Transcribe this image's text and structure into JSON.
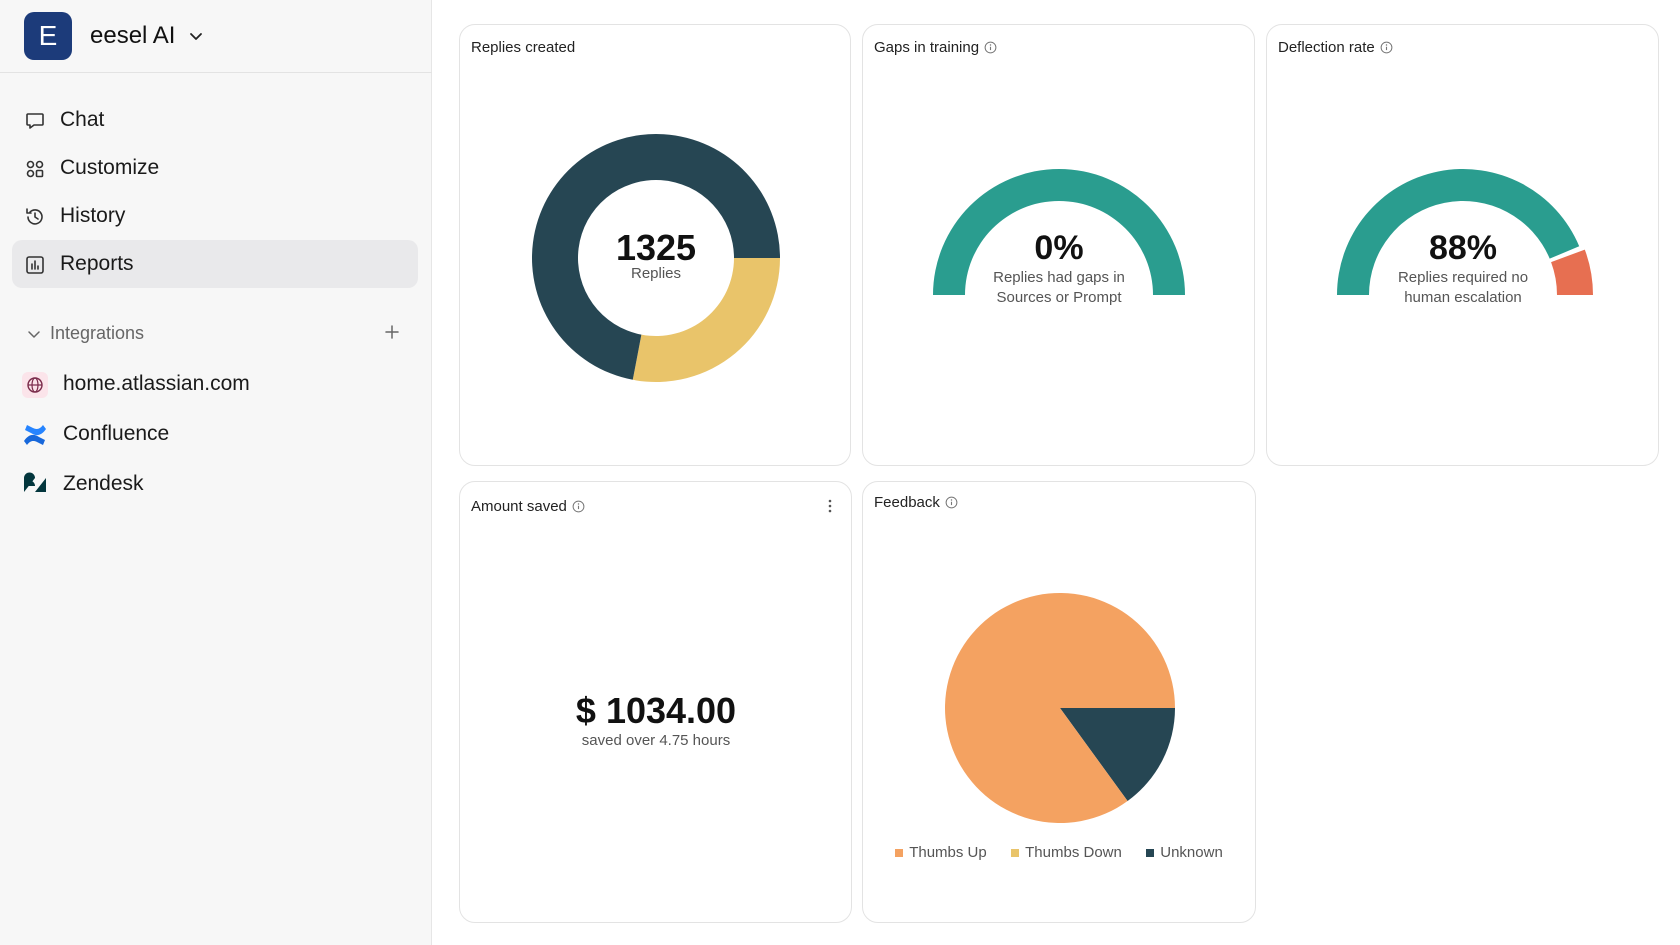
{
  "brand": {
    "logo_letter": "E",
    "name": "eesel AI"
  },
  "nav": [
    {
      "label": "Chat",
      "icon": "chat-icon",
      "active": false
    },
    {
      "label": "Customize",
      "icon": "customize-icon",
      "active": false
    },
    {
      "label": "History",
      "icon": "history-icon",
      "active": false
    },
    {
      "label": "Reports",
      "icon": "reports-icon",
      "active": true
    }
  ],
  "integrations": {
    "heading": "Integrations",
    "items": [
      {
        "label": "home.atlassian.com",
        "icon": "globe-icon"
      },
      {
        "label": "Confluence",
        "icon": "confluence-icon"
      },
      {
        "label": "Zendesk",
        "icon": "zendesk-icon"
      }
    ]
  },
  "cards": {
    "replies": {
      "title": "Replies created",
      "value": "1325",
      "caption": "Replies"
    },
    "gaps": {
      "title": "Gaps in training",
      "value": "0%",
      "caption_line1": "Replies had gaps in",
      "caption_line2": "Sources or Prompt"
    },
    "deflection": {
      "title": "Deflection rate",
      "value": "88%",
      "caption_line1": "Replies required no",
      "caption_line2": "human escalation"
    },
    "amount": {
      "title": "Amount saved",
      "value": "$ 1034.00",
      "caption": "saved over 4.75 hours"
    },
    "feedback": {
      "title": "Feedback",
      "legend": [
        "Thumbs Up",
        "Thumbs Down",
        "Unknown"
      ]
    }
  },
  "colors": {
    "dark": "#264653",
    "yellow": "#e9c46a",
    "teal": "#2a9d8f",
    "red": "#e76f51",
    "orange": "#f4a261"
  },
  "chart_data": [
    {
      "type": "pie",
      "title": "Replies created",
      "series": [
        {
          "values": [
            0.72,
            0.28
          ]
        }
      ],
      "colors": [
        "#264653",
        "#e9c46a"
      ]
    },
    {
      "type": "gauge",
      "title": "Gaps in training",
      "values": [
        0
      ]
    },
    {
      "type": "gauge",
      "title": "Deflection rate",
      "values": [
        88
      ]
    },
    {
      "type": "pie",
      "title": "Feedback",
      "categories": [
        "Thumbs Up",
        "Thumbs Down",
        "Unknown"
      ],
      "values": [
        0.85,
        0,
        0.15
      ]
    }
  ]
}
